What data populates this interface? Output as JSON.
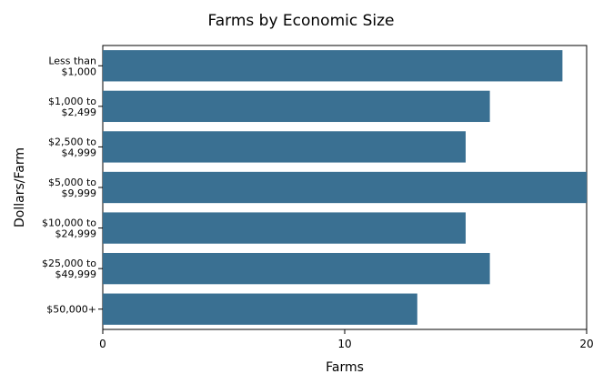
{
  "chart_data": {
    "type": "bar",
    "orientation": "horizontal",
    "title": "Farms by Economic Size",
    "xlabel": "Farms",
    "ylabel": "Dollars/Farm",
    "categories": [
      [
        "Less than",
        "$1,000"
      ],
      [
        "$1,000 to",
        "$2,499"
      ],
      [
        "$2,500 to",
        "$4,999"
      ],
      [
        "$5,000 to",
        "$9,999"
      ],
      [
        "$10,000 to",
        "$24,999"
      ],
      [
        "$25,000 to",
        "$49,999"
      ],
      [
        "$50,000+"
      ]
    ],
    "values": [
      19,
      16,
      15,
      20,
      15,
      16,
      13
    ],
    "xlim": [
      0,
      20
    ],
    "xticks": [
      0,
      10,
      20
    ],
    "grid": false,
    "bar_color": "#3a7092"
  }
}
